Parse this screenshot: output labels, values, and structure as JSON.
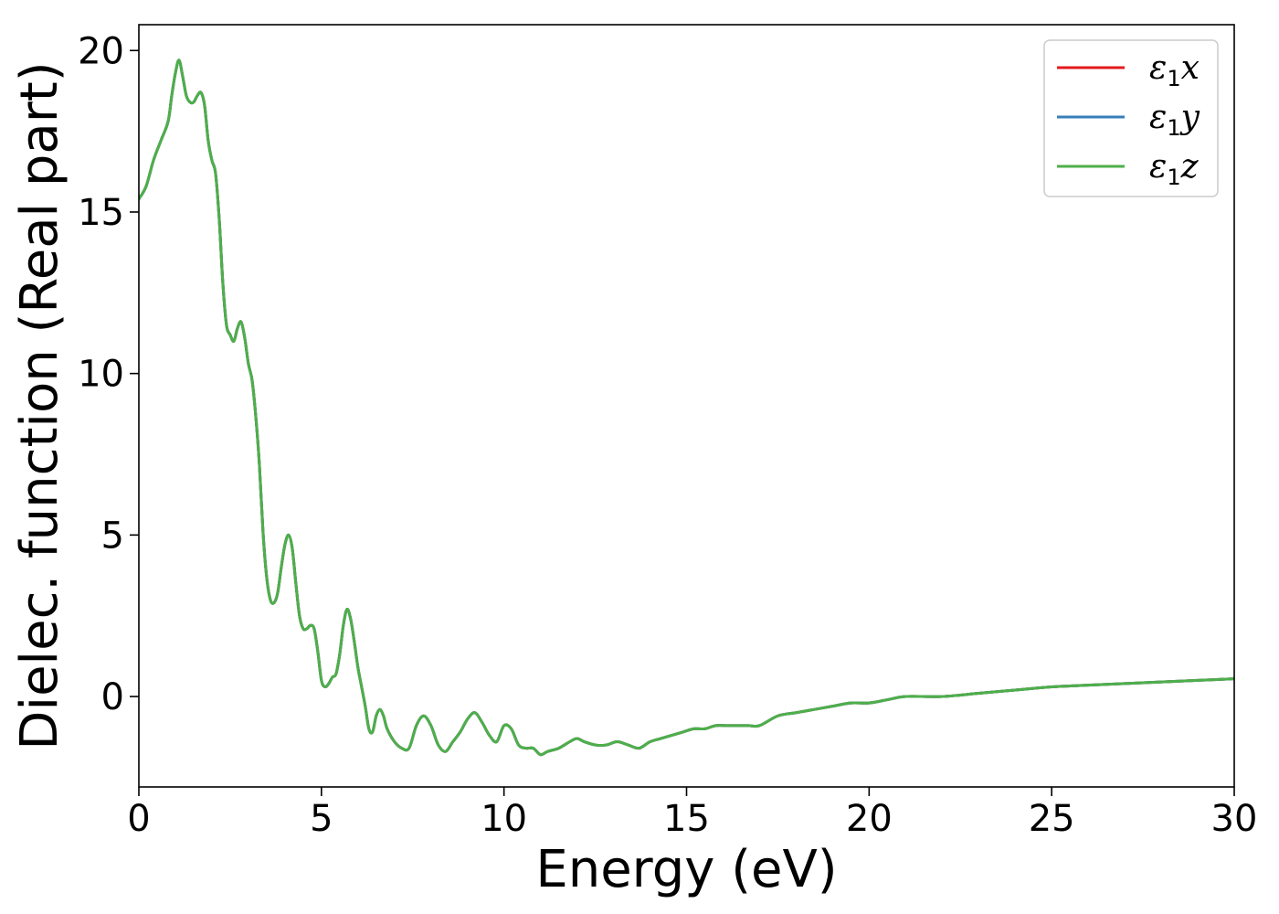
{
  "chart_data": {
    "type": "line",
    "title": "",
    "xlabel": "Energy (eV)",
    "ylabel": "Dielec. function (Real part)",
    "xlim": [
      0,
      30
    ],
    "ylim": [
      -2.8,
      20.8
    ],
    "xticks": [
      "0",
      "5",
      "10",
      "15",
      "20",
      "25",
      "30"
    ],
    "yticks": [
      "0",
      "5",
      "10",
      "15",
      "20"
    ],
    "grid": false,
    "legend_position": "top-right",
    "x": [
      0,
      0.2,
      0.4,
      0.6,
      0.8,
      0.9,
      1.0,
      1.1,
      1.2,
      1.3,
      1.4,
      1.5,
      1.6,
      1.7,
      1.8,
      1.9,
      2.0,
      2.1,
      2.2,
      2.3,
      2.4,
      2.5,
      2.6,
      2.7,
      2.8,
      2.9,
      3.0,
      3.1,
      3.2,
      3.3,
      3.4,
      3.5,
      3.6,
      3.7,
      3.8,
      3.9,
      4.0,
      4.1,
      4.2,
      4.3,
      4.4,
      4.5,
      4.6,
      4.7,
      4.8,
      4.9,
      5.0,
      5.1,
      5.2,
      5.3,
      5.4,
      5.5,
      5.6,
      5.7,
      5.8,
      5.9,
      6.0,
      6.1,
      6.2,
      6.3,
      6.4,
      6.5,
      6.6,
      6.7,
      6.8,
      7.0,
      7.2,
      7.4,
      7.6,
      7.8,
      8.0,
      8.2,
      8.4,
      8.6,
      8.8,
      9.0,
      9.2,
      9.4,
      9.6,
      9.8,
      10.0,
      10.2,
      10.4,
      10.6,
      10.8,
      11.0,
      11.2,
      11.5,
      11.8,
      12.0,
      12.2,
      12.5,
      12.8,
      13.1,
      13.4,
      13.7,
      14.0,
      14.3,
      14.6,
      14.9,
      15.2,
      15.5,
      15.8,
      16.1,
      16.4,
      16.7,
      17.0,
      17.5,
      18.0,
      18.5,
      19.0,
      19.5,
      20.0,
      20.5,
      21.0,
      22.0,
      23.0,
      24.0,
      25.0,
      26.0,
      27.0,
      28.0,
      29.0,
      30.0
    ],
    "series": [
      {
        "name": "ε1x",
        "color": "#e41a1c",
        "y": [
          15.4,
          15.8,
          16.6,
          17.2,
          17.8,
          18.6,
          19.3,
          19.7,
          19.2,
          18.6,
          18.4,
          18.4,
          18.6,
          18.7,
          18.3,
          17.2,
          16.6,
          16.2,
          14.8,
          12.8,
          11.5,
          11.2,
          11.0,
          11.4,
          11.6,
          11.1,
          10.3,
          9.8,
          8.7,
          7.2,
          5.1,
          3.7,
          3.0,
          2.9,
          3.2,
          4.0,
          4.7,
          5.0,
          4.6,
          3.5,
          2.5,
          2.1,
          2.1,
          2.2,
          2.1,
          1.4,
          0.5,
          0.3,
          0.4,
          0.6,
          0.7,
          1.3,
          2.2,
          2.7,
          2.4,
          1.7,
          0.9,
          0.3,
          -0.3,
          -1.0,
          -1.1,
          -0.6,
          -0.4,
          -0.6,
          -1.0,
          -1.4,
          -1.6,
          -1.6,
          -0.9,
          -0.6,
          -0.9,
          -1.5,
          -1.7,
          -1.4,
          -1.1,
          -0.7,
          -0.5,
          -0.8,
          -1.2,
          -1.4,
          -0.9,
          -1.0,
          -1.5,
          -1.6,
          -1.6,
          -1.8,
          -1.7,
          -1.6,
          -1.4,
          -1.3,
          -1.4,
          -1.5,
          -1.5,
          -1.4,
          -1.5,
          -1.6,
          -1.4,
          -1.3,
          -1.2,
          -1.1,
          -1.0,
          -1.0,
          -0.9,
          -0.9,
          -0.9,
          -0.9,
          -0.9,
          -0.6,
          -0.5,
          -0.4,
          -0.3,
          -0.2,
          -0.2,
          -0.1,
          0.0,
          0.0,
          0.1,
          0.2,
          0.3,
          0.35,
          0.4,
          0.45,
          0.5,
          0.55
        ]
      },
      {
        "name": "ε1y",
        "color": "#377eb8",
        "y": [
          15.4,
          15.8,
          16.6,
          17.2,
          17.8,
          18.6,
          19.3,
          19.7,
          19.2,
          18.6,
          18.4,
          18.4,
          18.6,
          18.7,
          18.3,
          17.2,
          16.6,
          16.2,
          14.8,
          12.8,
          11.5,
          11.2,
          11.0,
          11.4,
          11.6,
          11.1,
          10.3,
          9.8,
          8.7,
          7.2,
          5.1,
          3.7,
          3.0,
          2.9,
          3.2,
          4.0,
          4.7,
          5.0,
          4.6,
          3.5,
          2.5,
          2.1,
          2.1,
          2.2,
          2.1,
          1.4,
          0.5,
          0.3,
          0.4,
          0.6,
          0.7,
          1.3,
          2.2,
          2.7,
          2.4,
          1.7,
          0.9,
          0.3,
          -0.3,
          -1.0,
          -1.1,
          -0.6,
          -0.4,
          -0.6,
          -1.0,
          -1.4,
          -1.6,
          -1.6,
          -0.9,
          -0.6,
          -0.9,
          -1.5,
          -1.7,
          -1.4,
          -1.1,
          -0.7,
          -0.5,
          -0.8,
          -1.2,
          -1.4,
          -0.9,
          -1.0,
          -1.5,
          -1.6,
          -1.6,
          -1.8,
          -1.7,
          -1.6,
          -1.4,
          -1.3,
          -1.4,
          -1.5,
          -1.5,
          -1.4,
          -1.5,
          -1.6,
          -1.4,
          -1.3,
          -1.2,
          -1.1,
          -1.0,
          -1.0,
          -0.9,
          -0.9,
          -0.9,
          -0.9,
          -0.9,
          -0.6,
          -0.5,
          -0.4,
          -0.3,
          -0.2,
          -0.2,
          -0.1,
          0.0,
          0.0,
          0.1,
          0.2,
          0.3,
          0.35,
          0.4,
          0.45,
          0.5,
          0.55
        ]
      },
      {
        "name": "ε1z",
        "color": "#4daf4a",
        "y": [
          15.4,
          15.8,
          16.6,
          17.2,
          17.8,
          18.6,
          19.3,
          19.7,
          19.2,
          18.6,
          18.4,
          18.4,
          18.6,
          18.7,
          18.3,
          17.2,
          16.6,
          16.2,
          14.8,
          12.8,
          11.5,
          11.2,
          11.0,
          11.4,
          11.6,
          11.1,
          10.3,
          9.8,
          8.7,
          7.2,
          5.1,
          3.7,
          3.0,
          2.9,
          3.2,
          4.0,
          4.7,
          5.0,
          4.6,
          3.5,
          2.5,
          2.1,
          2.1,
          2.2,
          2.1,
          1.4,
          0.5,
          0.3,
          0.4,
          0.6,
          0.7,
          1.3,
          2.2,
          2.7,
          2.4,
          1.7,
          0.9,
          0.3,
          -0.3,
          -1.0,
          -1.1,
          -0.6,
          -0.4,
          -0.6,
          -1.0,
          -1.4,
          -1.6,
          -1.6,
          -0.9,
          -0.6,
          -0.9,
          -1.5,
          -1.7,
          -1.4,
          -1.1,
          -0.7,
          -0.5,
          -0.8,
          -1.2,
          -1.4,
          -0.9,
          -1.0,
          -1.5,
          -1.6,
          -1.6,
          -1.8,
          -1.7,
          -1.6,
          -1.4,
          -1.3,
          -1.4,
          -1.5,
          -1.5,
          -1.4,
          -1.5,
          -1.6,
          -1.4,
          -1.3,
          -1.2,
          -1.1,
          -1.0,
          -1.0,
          -0.9,
          -0.9,
          -0.9,
          -0.9,
          -0.9,
          -0.6,
          -0.5,
          -0.4,
          -0.3,
          -0.2,
          -0.2,
          -0.1,
          0.0,
          0.0,
          0.1,
          0.2,
          0.3,
          0.35,
          0.4,
          0.45,
          0.5,
          0.55
        ]
      }
    ],
    "legend": [
      {
        "symbol": "ε",
        "sub": "1",
        "var": "x"
      },
      {
        "symbol": "ε",
        "sub": "1",
        "var": "y"
      },
      {
        "symbol": "ε",
        "sub": "1",
        "var": "z"
      }
    ]
  }
}
